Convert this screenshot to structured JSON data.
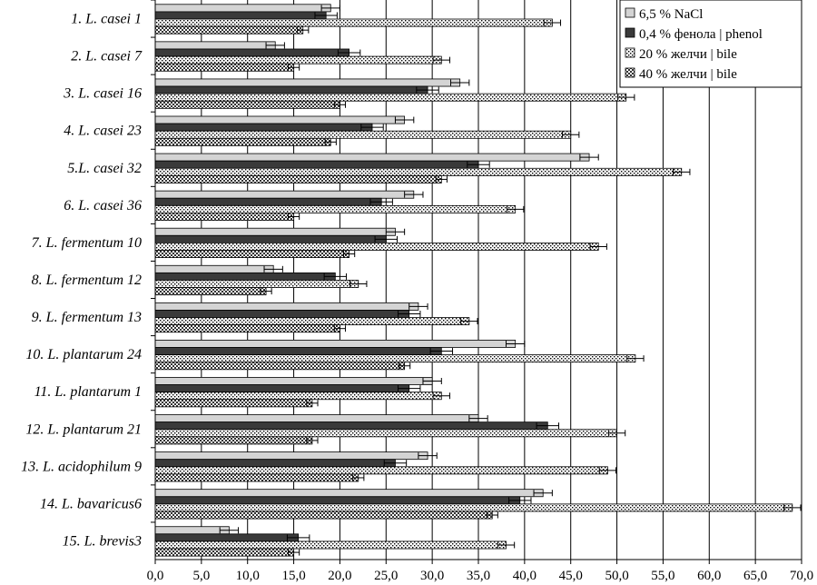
{
  "chart_data": {
    "type": "bar",
    "orientation": "horizontal",
    "categories": [
      "1. L. casei  1",
      "2. L. casei  7",
      "3. L. casei  16",
      "4. L. casei  23",
      "5.L. casei 32",
      "6. L. casei  36",
      "7. L. fermentum 10",
      "8. L. fermentum 12",
      "9. L. fermentum 13",
      "10. L. plantarum 24",
      "11. L. plantarum 1",
      "12. L. plantarum 21",
      "13. L. acidophilum 9",
      "14. L. bavaricus6",
      "15. L. brevis3"
    ],
    "series": [
      {
        "name": "6,5 % NaCl",
        "color": "#d4d4d4",
        "pattern": "solid",
        "values": [
          19,
          13,
          33,
          27,
          47,
          28,
          26,
          12.8,
          28.5,
          39,
          30,
          35,
          29.5,
          42,
          8
        ],
        "errors": [
          1.0,
          1.0,
          1.0,
          1.0,
          1.0,
          1.0,
          1.0,
          1.0,
          1.0,
          1.0,
          1.0,
          1.0,
          1.0,
          1.0,
          1.0
        ]
      },
      {
        "name": "0,4 % фенола | phenol",
        "color": "#3a3a3a",
        "pattern": "solid",
        "values": [
          18.5,
          21,
          29.5,
          23.5,
          35,
          24.5,
          25,
          19.5,
          27.5,
          31,
          27.5,
          42.5,
          26,
          39.5,
          15.5
        ],
        "errors": [
          1.2,
          1.2,
          1.2,
          1.2,
          1.2,
          1.2,
          1.2,
          1.2,
          1.2,
          1.2,
          1.2,
          1.2,
          1.2,
          1.2,
          1.2
        ]
      },
      {
        "name": "20 % желчи | bile",
        "color": "#ffffff",
        "pattern": "dots",
        "values": [
          43,
          31,
          51,
          45,
          57,
          39,
          48,
          22,
          34,
          52,
          31,
          50,
          49,
          69,
          38
        ],
        "errors": [
          0.9,
          0.9,
          0.9,
          0.9,
          0.9,
          0.9,
          0.9,
          0.9,
          0.9,
          0.9,
          0.9,
          0.9,
          0.9,
          0.9,
          0.9
        ]
      },
      {
        "name": "40 % желчи | bile",
        "color": "#555555",
        "pattern": "checker",
        "values": [
          16,
          15,
          20,
          19,
          31,
          15,
          21,
          12,
          20,
          27,
          17,
          17,
          22,
          36.5,
          15
        ],
        "errors": [
          0.6,
          0.6,
          0.6,
          0.6,
          0.6,
          0.6,
          0.6,
          0.6,
          0.6,
          0.6,
          0.6,
          0.6,
          0.6,
          0.6,
          0.6
        ]
      }
    ],
    "xlim": [
      0,
      70
    ],
    "xticks": [
      "0,0",
      "5,0",
      "10,0",
      "15,0",
      "20,0",
      "25,0",
      "30,0",
      "35,0",
      "40,0",
      "45,0",
      "50,0",
      "55,0",
      "60,0",
      "65,0",
      "70,0"
    ],
    "title": "",
    "xlabel": "",
    "ylabel": "",
    "grid": "vertical",
    "legend_position": "top-right",
    "error_bars": true
  }
}
